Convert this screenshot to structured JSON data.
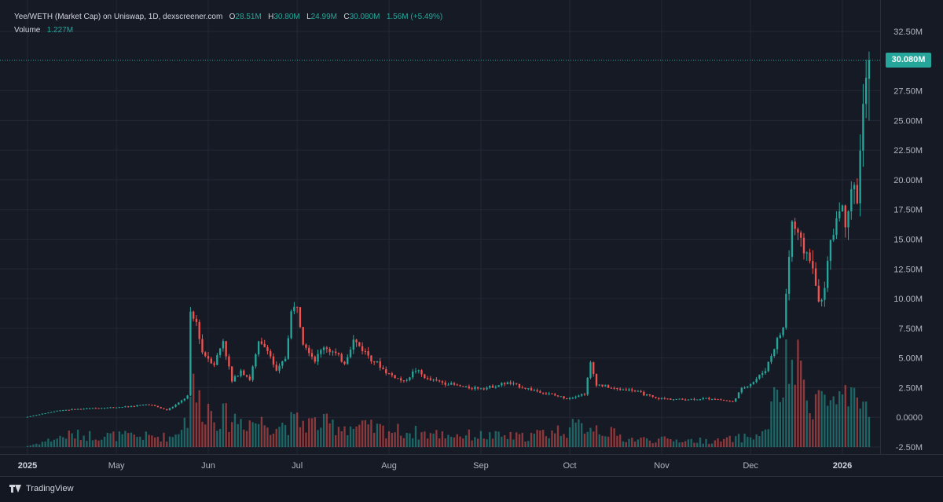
{
  "colors": {
    "up": "#26a69a",
    "down": "#ef5350",
    "grid": "#242836",
    "axis_text": "#b2b5be",
    "background": "#161a25"
  },
  "legend": {
    "title": "Yee/WETH (Market Cap) on Uniswap, 1D, dexscreener.com",
    "open_label": "O",
    "open_value": "28.51M",
    "high_label": "H",
    "high_value": "30.80M",
    "low_label": "L",
    "low_value": "24.99M",
    "close_label": "C",
    "close_value": "30.080M",
    "change_value": "1.56M (+5.49%)",
    "volume_label": "Volume",
    "volume_value": "1.227M"
  },
  "price_tag": "30.080M",
  "footer": {
    "brand": "TradingView",
    "brand_icon": "tradingview-logo-icon"
  },
  "chart_data": {
    "type": "candlestick",
    "title": "Yee/WETH (Market Cap) on Uniswap, 1D, dexscreener.com",
    "y_unit": "USD market cap (millions)",
    "ylim": [
      -2.5,
      32.5
    ],
    "y_ticks": [
      {
        "value": 32.5,
        "label": "32.50M"
      },
      {
        "value": 27.5,
        "label": "27.50M"
      },
      {
        "value": 25,
        "label": "25.00M"
      },
      {
        "value": 22.5,
        "label": "22.50M"
      },
      {
        "value": 20,
        "label": "20.00M"
      },
      {
        "value": 17.5,
        "label": "17.50M"
      },
      {
        "value": 15,
        "label": "15.00M"
      },
      {
        "value": 12.5,
        "label": "12.50M"
      },
      {
        "value": 10,
        "label": "10.00M"
      },
      {
        "value": 7.5,
        "label": "7.50M"
      },
      {
        "value": 5,
        "label": "5.00M"
      },
      {
        "value": 2.5,
        "label": "2.50M"
      },
      {
        "value": 0,
        "label": "0.0000"
      },
      {
        "value": -2.5,
        "label": "-2.50M"
      }
    ],
    "x_ticks": [
      {
        "label": "2025",
        "date": "2025-04-01",
        "bold": true
      },
      {
        "label": "May",
        "date": "2025-05-01"
      },
      {
        "label": "Jun",
        "date": "2025-06-01"
      },
      {
        "label": "Jul",
        "date": "2025-07-01"
      },
      {
        "label": "Aug",
        "date": "2025-08-01"
      },
      {
        "label": "Sep",
        "date": "2025-09-01"
      },
      {
        "label": "Oct",
        "date": "2025-10-01"
      },
      {
        "label": "Nov",
        "date": "2025-11-01"
      },
      {
        "label": "Dec",
        "date": "2025-12-01"
      },
      {
        "label": "2026",
        "date": "2026-01-01",
        "bold": true
      }
    ],
    "last_close": 30.08,
    "price_anchors": [
      [
        "2025-04-01",
        0.05
      ],
      [
        "2025-04-12",
        0.6
      ],
      [
        "2025-04-22",
        0.75
      ],
      [
        "2025-05-05",
        0.9
      ],
      [
        "2025-05-12",
        1.1
      ],
      [
        "2025-05-18",
        0.6
      ],
      [
        "2025-05-22",
        1.2
      ],
      [
        "2025-05-25",
        1.8
      ],
      [
        "2025-05-26",
        8.5
      ],
      [
        "2025-05-28",
        8.0
      ],
      [
        "2025-05-30",
        5.5
      ],
      [
        "2025-06-03",
        4.5
      ],
      [
        "2025-06-06",
        6.5
      ],
      [
        "2025-06-09",
        3.0
      ],
      [
        "2025-06-12",
        4.0
      ],
      [
        "2025-06-15",
        3.2
      ],
      [
        "2025-06-18",
        6.2
      ],
      [
        "2025-06-21",
        5.8
      ],
      [
        "2025-06-24",
        3.8
      ],
      [
        "2025-06-27",
        5.0
      ],
      [
        "2025-06-29",
        8.8
      ],
      [
        "2025-07-01",
        9.5
      ],
      [
        "2025-07-03",
        6.5
      ],
      [
        "2025-07-07",
        4.8
      ],
      [
        "2025-07-10",
        6.0
      ],
      [
        "2025-07-13",
        5.5
      ],
      [
        "2025-07-17",
        4.6
      ],
      [
        "2025-07-20",
        6.5
      ],
      [
        "2025-07-24",
        5.5
      ],
      [
        "2025-07-31",
        3.8
      ],
      [
        "2025-08-06",
        3.0
      ],
      [
        "2025-08-10",
        4.0
      ],
      [
        "2025-08-14",
        3.2
      ],
      [
        "2025-08-20",
        2.9
      ],
      [
        "2025-08-27",
        2.5
      ],
      [
        "2025-09-03",
        2.5
      ],
      [
        "2025-09-10",
        2.9
      ],
      [
        "2025-09-20",
        2.2
      ],
      [
        "2025-09-30",
        1.6
      ],
      [
        "2025-10-06",
        2.0
      ],
      [
        "2025-10-08",
        4.5
      ],
      [
        "2025-10-10",
        2.8
      ],
      [
        "2025-10-16",
        2.4
      ],
      [
        "2025-10-22",
        2.3
      ],
      [
        "2025-10-30",
        1.6
      ],
      [
        "2025-11-08",
        1.5
      ],
      [
        "2025-11-18",
        1.6
      ],
      [
        "2025-11-25",
        1.3
      ],
      [
        "2025-11-28",
        2.4
      ],
      [
        "2025-12-02",
        3.0
      ],
      [
        "2025-12-06",
        4.0
      ],
      [
        "2025-12-10",
        6.5
      ],
      [
        "2025-12-12",
        7.5
      ],
      [
        "2025-12-13",
        10.5
      ],
      [
        "2025-12-15",
        16.5
      ],
      [
        "2025-12-18",
        14.5
      ],
      [
        "2025-12-21",
        13.5
      ],
      [
        "2025-12-23",
        11.0
      ],
      [
        "2025-12-25",
        9.5
      ],
      [
        "2025-12-28",
        14.5
      ],
      [
        "2025-12-31",
        18.0
      ],
      [
        "2026-01-02",
        16.5
      ],
      [
        "2026-01-04",
        19.5
      ],
      [
        "2026-01-06",
        18.5
      ],
      [
        "2026-01-08",
        26.0
      ],
      [
        "2026-01-09",
        28.51
      ],
      [
        "2026-01-10",
        30.08
      ]
    ],
    "volume_anchors": [
      [
        "2025-04-01",
        0.1
      ],
      [
        "2025-04-15",
        1.2
      ],
      [
        "2025-05-20",
        1.0
      ],
      [
        "2025-05-25",
        3.0
      ],
      [
        "2025-05-26",
        6.0
      ],
      [
        "2025-05-29",
        4.5
      ],
      [
        "2025-06-05",
        3.0
      ],
      [
        "2025-06-25",
        2.2
      ],
      [
        "2025-07-01",
        2.5
      ],
      [
        "2025-07-20",
        2.0
      ],
      [
        "2025-08-15",
        1.3
      ],
      [
        "2025-09-15",
        1.0
      ],
      [
        "2025-10-08",
        2.2
      ],
      [
        "2025-10-20",
        0.8
      ],
      [
        "2025-11-20",
        0.6
      ],
      [
        "2025-12-05",
        1.2
      ],
      [
        "2025-12-12",
        6.5
      ],
      [
        "2025-12-15",
        8.5
      ],
      [
        "2025-12-20",
        5.5
      ],
      [
        "2025-12-28",
        4.5
      ],
      [
        "2026-01-05",
        4.0
      ],
      [
        "2026-01-10",
        4.5
      ]
    ]
  }
}
